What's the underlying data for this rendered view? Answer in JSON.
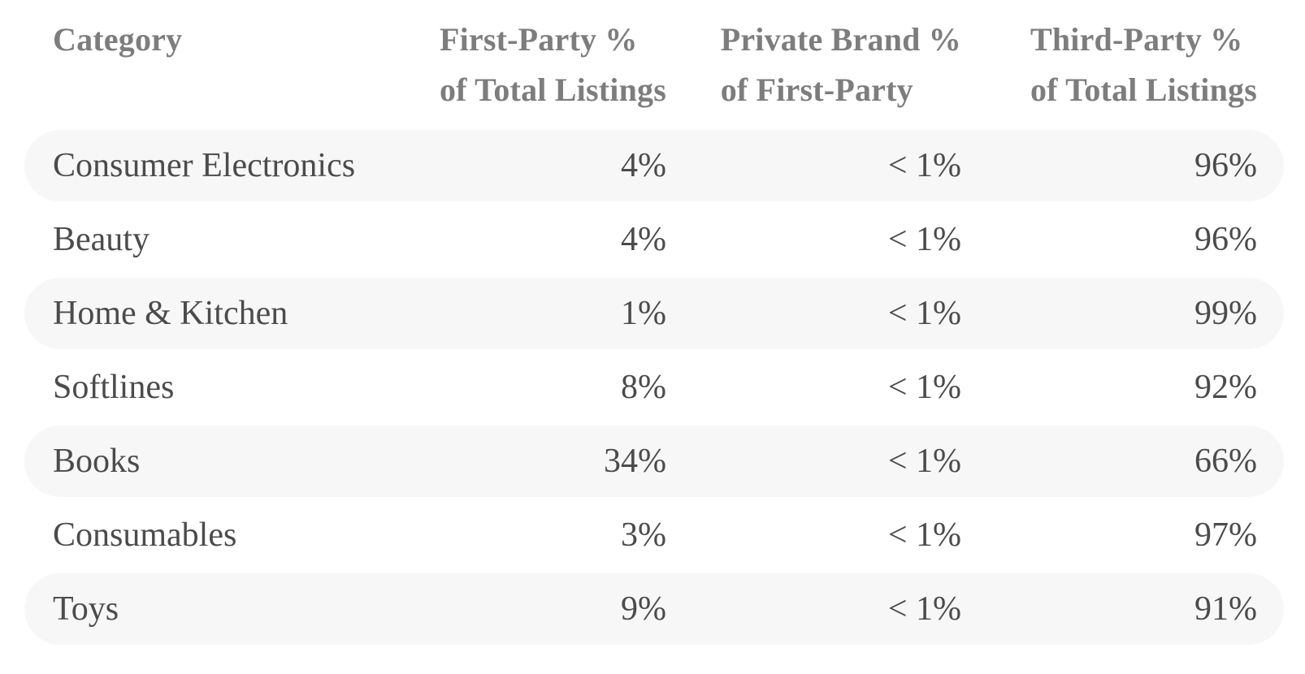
{
  "colors": {
    "background": "#ffffff",
    "row_stripe": "#f7f7f7",
    "header_text": "#7d7d7d",
    "body_text": "#4b4b4b"
  },
  "table": {
    "headers": {
      "category": {
        "lines": [
          "Category"
        ]
      },
      "first_party": {
        "lines": [
          "First-Party %",
          "of Total Listings"
        ]
      },
      "private_brand": {
        "lines": [
          "Private Brand %",
          "of First-Party"
        ]
      },
      "third_party": {
        "lines": [
          "Third-Party %",
          "of Total Listings"
        ]
      }
    },
    "rows": [
      {
        "category": "Consumer Electronics",
        "first_party_pct": "4%",
        "private_brand_pct": "< 1%",
        "third_party_pct": "96%"
      },
      {
        "category": "Beauty",
        "first_party_pct": "4%",
        "private_brand_pct": "< 1%",
        "third_party_pct": "96%"
      },
      {
        "category": "Home & Kitchen",
        "first_party_pct": "1%",
        "private_brand_pct": "< 1%",
        "third_party_pct": "99%"
      },
      {
        "category": "Softlines",
        "first_party_pct": "8%",
        "private_brand_pct": "< 1%",
        "third_party_pct": "92%"
      },
      {
        "category": "Books",
        "first_party_pct": "34%",
        "private_brand_pct": "< 1%",
        "third_party_pct": "66%"
      },
      {
        "category": "Consumables",
        "first_party_pct": "3%",
        "private_brand_pct": "< 1%",
        "third_party_pct": "97%"
      },
      {
        "category": "Toys",
        "first_party_pct": "9%",
        "private_brand_pct": "< 1%",
        "third_party_pct": "91%"
      }
    ]
  }
}
